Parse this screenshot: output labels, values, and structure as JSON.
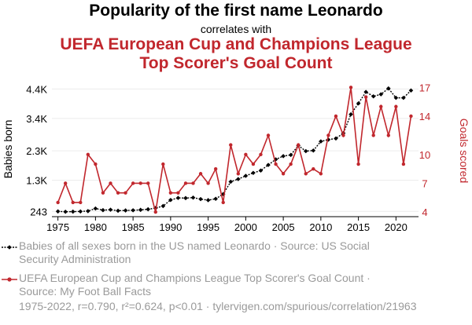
{
  "titles": {
    "main": "Popularity of the first name Leonardo",
    "connector": "correlates with",
    "second_line1": "UEFA European Cup and Champions League",
    "second_line2": "Top Scorer's Goal Count"
  },
  "legend": {
    "series1_line1": "Babies of all sexes born in the US named Leonardo · Source: US Social",
    "series1_line2": "Security Administration",
    "series2_line1": "UEFA European Cup and Champions League Top Scorer's Goal Count ·",
    "series2_line2": "Source: My Foot Ball Facts"
  },
  "footer": "1975-2022, r=0.790, r²=0.624, p<0.01 · tylervigen.com/spurious/correlation/21963",
  "colors": {
    "series1": "#000000",
    "series2": "#c1272d",
    "grid": "#ececec"
  },
  "chart_data": {
    "type": "line",
    "title": "Popularity of the first name Leonardo correlates with UEFA European Cup and Champions League Top Scorer's Goal Count",
    "xlabel": "",
    "ylabel_left": "Babies born",
    "ylabel_right": "Goals scored",
    "x": [
      1975,
      1976,
      1977,
      1978,
      1979,
      1980,
      1981,
      1982,
      1983,
      1984,
      1985,
      1986,
      1987,
      1988,
      1989,
      1990,
      1991,
      1992,
      1993,
      1994,
      1995,
      1996,
      1997,
      1998,
      1999,
      2000,
      2001,
      2002,
      2003,
      2004,
      2005,
      2006,
      2007,
      2008,
      2009,
      2010,
      2011,
      2012,
      2013,
      2014,
      2015,
      2016,
      2017,
      2018,
      2019,
      2020,
      2021,
      2022
    ],
    "xlim": [
      1974.2,
      2023
    ],
    "x_ticks": [
      "1975",
      "1980",
      "1985",
      "1990",
      "1995",
      "2000",
      "2005",
      "2010",
      "2015",
      "2020"
    ],
    "y_left": {
      "ylim": [
        90,
        4650
      ],
      "ticks": [
        243,
        1300,
        2300,
        3400,
        4400
      ],
      "tick_labels": [
        "243",
        "1.3K",
        "2.3K",
        "3.4K",
        "4.4K"
      ]
    },
    "y_right": {
      "ylim": [
        3.6,
        17.6
      ],
      "ticks": [
        4,
        7,
        10,
        14,
        17
      ],
      "tick_labels": [
        "4",
        "7",
        "10",
        "14",
        "17"
      ]
    },
    "series": [
      {
        "name": "Babies of all sexes born in the US named Leonardo",
        "axis": "left",
        "style": "dotted-line-diamond-markers",
        "values": [
          243,
          230,
          235,
          240,
          252,
          340,
          285,
          300,
          265,
          275,
          280,
          295,
          315,
          355,
          425,
          630,
          700,
          695,
          710,
          660,
          625,
          670,
          830,
          1250,
          1340,
          1450,
          1550,
          1630,
          1820,
          2010,
          2120,
          2160,
          2480,
          2290,
          2310,
          2620,
          2680,
          2720,
          2900,
          3540,
          3910,
          4300,
          4150,
          4220,
          4420,
          4100,
          4100,
          4350
        ]
      },
      {
        "name": "UEFA European Cup and Champions League Top Scorer's Goal Count",
        "axis": "right",
        "style": "solid-line-circle-markers",
        "values": [
          5,
          7,
          5,
          5,
          10,
          9,
          6,
          7,
          6,
          6,
          7,
          7,
          7,
          4,
          9,
          6,
          6,
          7,
          7,
          8,
          7,
          8.5,
          5,
          11,
          8,
          10,
          9,
          10,
          12,
          9,
          8,
          9,
          11,
          8,
          8.5,
          8,
          12,
          14,
          12,
          17,
          9,
          16,
          12,
          15,
          12,
          15,
          9,
          14
        ]
      }
    ]
  }
}
